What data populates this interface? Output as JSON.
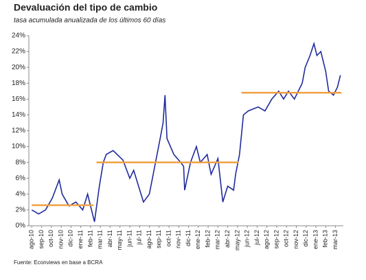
{
  "chart_data": {
    "type": "line",
    "title": "Devaluación del tipo de cambio",
    "subtitle": "tasa acumulada anualizada de los últimos 60 días",
    "source": "Fuente: Econviews en base a BCRA",
    "grid": false,
    "xlim": [
      -0.3,
      31.8
    ],
    "ylim": [
      0,
      24
    ],
    "yticks": [
      {
        "value": 0,
        "label": "0%"
      },
      {
        "value": 2,
        "label": "2%"
      },
      {
        "value": 4,
        "label": "4%"
      },
      {
        "value": 6,
        "label": "6%"
      },
      {
        "value": 8,
        "label": "8%"
      },
      {
        "value": 10,
        "label": "10%"
      },
      {
        "value": 12,
        "label": "12%"
      },
      {
        "value": 14,
        "label": "14%"
      },
      {
        "value": 16,
        "label": "16%"
      },
      {
        "value": 18,
        "label": "18%"
      },
      {
        "value": 20,
        "label": "20%"
      },
      {
        "value": 22,
        "label": "22%"
      },
      {
        "value": 24,
        "label": "24%"
      }
    ],
    "xticks": [
      {
        "value": 0,
        "label": "ago-10"
      },
      {
        "value": 1,
        "label": "sep-10"
      },
      {
        "value": 2,
        "label": "oct-10"
      },
      {
        "value": 3,
        "label": "nov-10"
      },
      {
        "value": 4,
        "label": "dic-10"
      },
      {
        "value": 5,
        "label": "ene-11"
      },
      {
        "value": 6,
        "label": "feb-11"
      },
      {
        "value": 7,
        "label": "mar-11"
      },
      {
        "value": 8,
        "label": "abr-11"
      },
      {
        "value": 9,
        "label": "may-11"
      },
      {
        "value": 10,
        "label": "jun-11"
      },
      {
        "value": 11,
        "label": "jul-11"
      },
      {
        "value": 12,
        "label": "ago-11"
      },
      {
        "value": 13,
        "label": "sep-11"
      },
      {
        "value": 14,
        "label": "oct-11"
      },
      {
        "value": 15,
        "label": "nov-11"
      },
      {
        "value": 16,
        "label": "dic-11"
      },
      {
        "value": 17,
        "label": "ene-12"
      },
      {
        "value": 18,
        "label": "feb-12"
      },
      {
        "value": 19,
        "label": "mar-12"
      },
      {
        "value": 20,
        "label": "abr-12"
      },
      {
        "value": 21,
        "label": "may-12"
      },
      {
        "value": 22,
        "label": "jun-12"
      },
      {
        "value": 23,
        "label": "jul-12"
      },
      {
        "value": 24,
        "label": "ago-12"
      },
      {
        "value": 25,
        "label": "sep-12"
      },
      {
        "value": 26,
        "label": "oct-12"
      },
      {
        "value": 27,
        "label": "nov-12"
      },
      {
        "value": 28,
        "label": "dic-12"
      },
      {
        "value": 29,
        "label": "ene-13"
      },
      {
        "value": 30,
        "label": "feb-13"
      },
      {
        "value": 31,
        "label": "mar-13"
      }
    ],
    "series": [
      {
        "color": "#1f2a9c",
        "x": [
          0,
          0.7,
          1.4,
          2.1,
          2.8,
          3.1,
          3.8,
          4.5,
          5.2,
          5.7,
          6.1,
          6.4,
          6.9,
          7.3,
          7.6,
          8.3,
          9.3,
          10,
          10.4,
          11.4,
          12,
          13.1,
          13.4,
          13.6,
          13.8,
          14.5,
          15.2,
          15.5,
          15.6,
          16.2,
          16.8,
          17.2,
          17.9,
          18.3,
          19,
          19.5,
          20,
          20.6,
          20.8,
          21.2,
          21.6,
          22.1,
          23.1,
          23.8,
          24.5,
          25.2,
          25.7,
          26.2,
          26.8,
          27.6,
          27.9,
          28.4,
          28.8,
          29.1,
          29.5,
          30,
          30.3,
          30.8,
          31.2,
          31.5
        ],
        "values": [
          2,
          1.5,
          2,
          3.5,
          5.8,
          4,
          2.5,
          3,
          2,
          4,
          2,
          0.5,
          5,
          8,
          9,
          9.5,
          8.3,
          6,
          7,
          3,
          4,
          11,
          13,
          16.5,
          11,
          9,
          8,
          7.5,
          4.5,
          8,
          10,
          8,
          9,
          6.5,
          8.5,
          3,
          5,
          4.5,
          6.5,
          9,
          14,
          14.5,
          15,
          14.5,
          16,
          17,
          16,
          17,
          16,
          18,
          20,
          21.5,
          23,
          21.5,
          22,
          19.5,
          17,
          16.5,
          17.5,
          19
        ]
      }
    ],
    "segments": [
      {
        "x": [
          0,
          6.3
        ],
        "value": 2.6
      },
      {
        "x": [
          6.6,
          21.1
        ],
        "value": 8
      },
      {
        "x": [
          21.4,
          31.6
        ],
        "value": 16.8
      }
    ],
    "segment_color": "#f0a040"
  }
}
